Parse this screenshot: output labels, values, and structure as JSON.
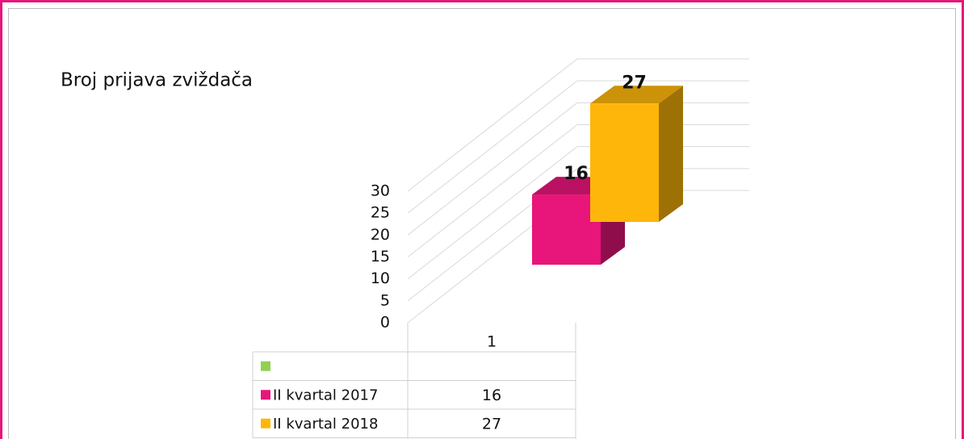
{
  "chart_data": {
    "type": "bar3d",
    "title": "Broj prijava zviždača",
    "categories": [
      "1"
    ],
    "series": [
      {
        "color": "#92d050",
        "values": [
          null
        ]
      },
      {
        "name": "II kvartal 2017",
        "color": "#e8157a",
        "values": [
          16
        ]
      },
      {
        "name": "II kvartal 2018",
        "color": "#ffb60a",
        "values": [
          27
        ]
      }
    ],
    "ylim": [
      0,
      30
    ],
    "yticks": [
      0,
      5,
      10,
      15,
      20,
      25,
      30
    ],
    "grid": true,
    "data_labels": true,
    "data_table": true
  }
}
